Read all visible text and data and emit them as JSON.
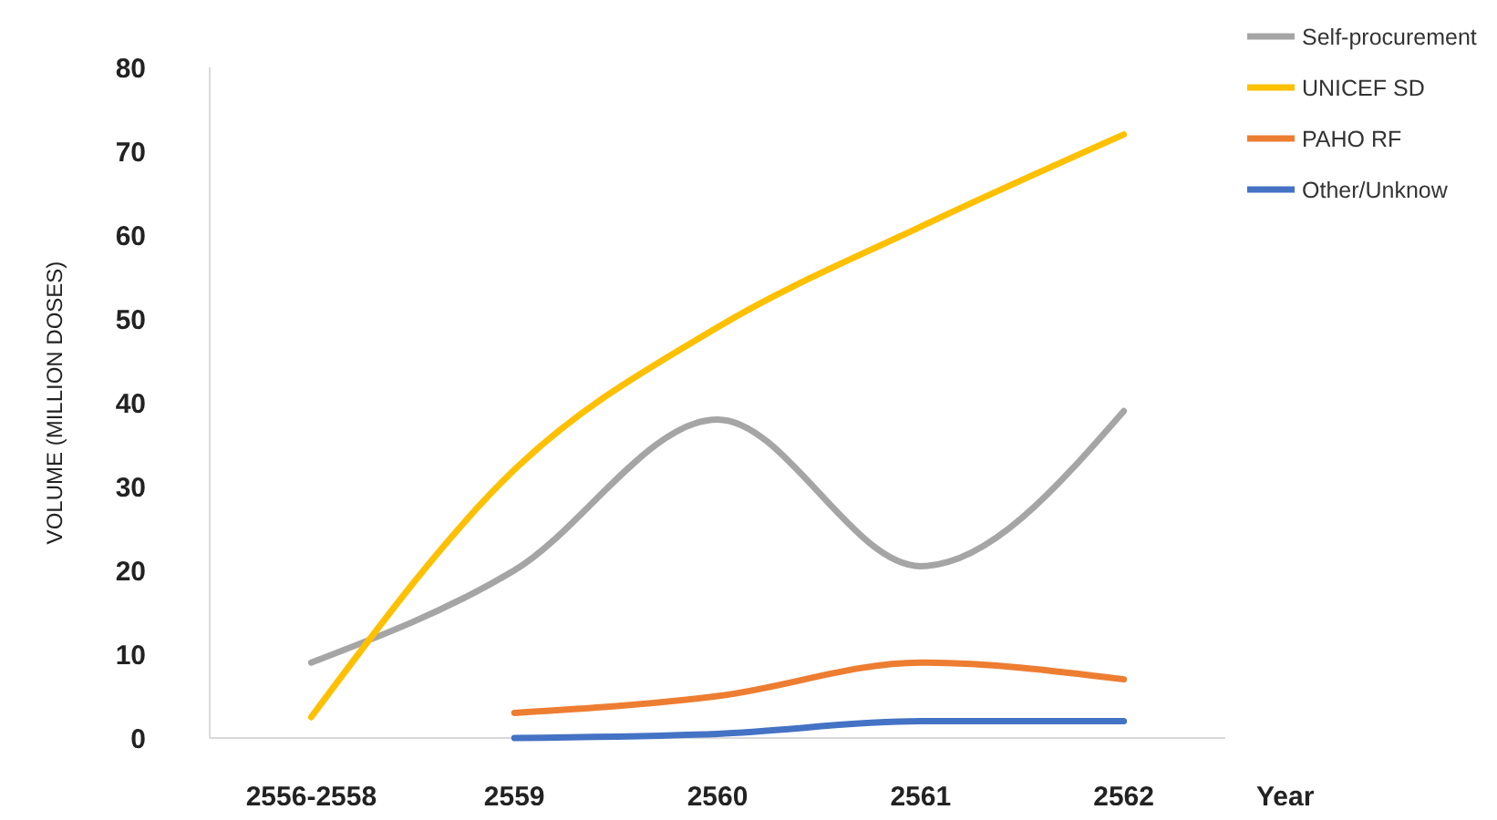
{
  "chart_data": {
    "type": "line",
    "xlabel": "Year",
    "ylabel": "VOLUME (MILLION DOSES)",
    "categories": [
      "2556-2558",
      "2559",
      "2560",
      "2561",
      "2562"
    ],
    "series": [
      {
        "name": "Self-procurement",
        "color": "#a5a5a5",
        "values": [
          9,
          20,
          38,
          20.5,
          39
        ]
      },
      {
        "name": "UNICEF SD",
        "color": "#ffc000",
        "values": [
          2.5,
          32,
          49,
          61,
          72
        ]
      },
      {
        "name": "PAHO RF",
        "color": "#ed7d31",
        "values": [
          null,
          3,
          5,
          9,
          7
        ]
      },
      {
        "name": "Other/Unknow",
        "color": "#4472c4",
        "values": [
          null,
          0,
          0.5,
          2,
          2
        ]
      }
    ],
    "ylim": [
      0,
      80
    ],
    "yticks": [
      0,
      10,
      20,
      30,
      40,
      50,
      60,
      70,
      80
    ],
    "grid": false,
    "legend": "top right",
    "marker": "none",
    "line_style": "solid"
  }
}
